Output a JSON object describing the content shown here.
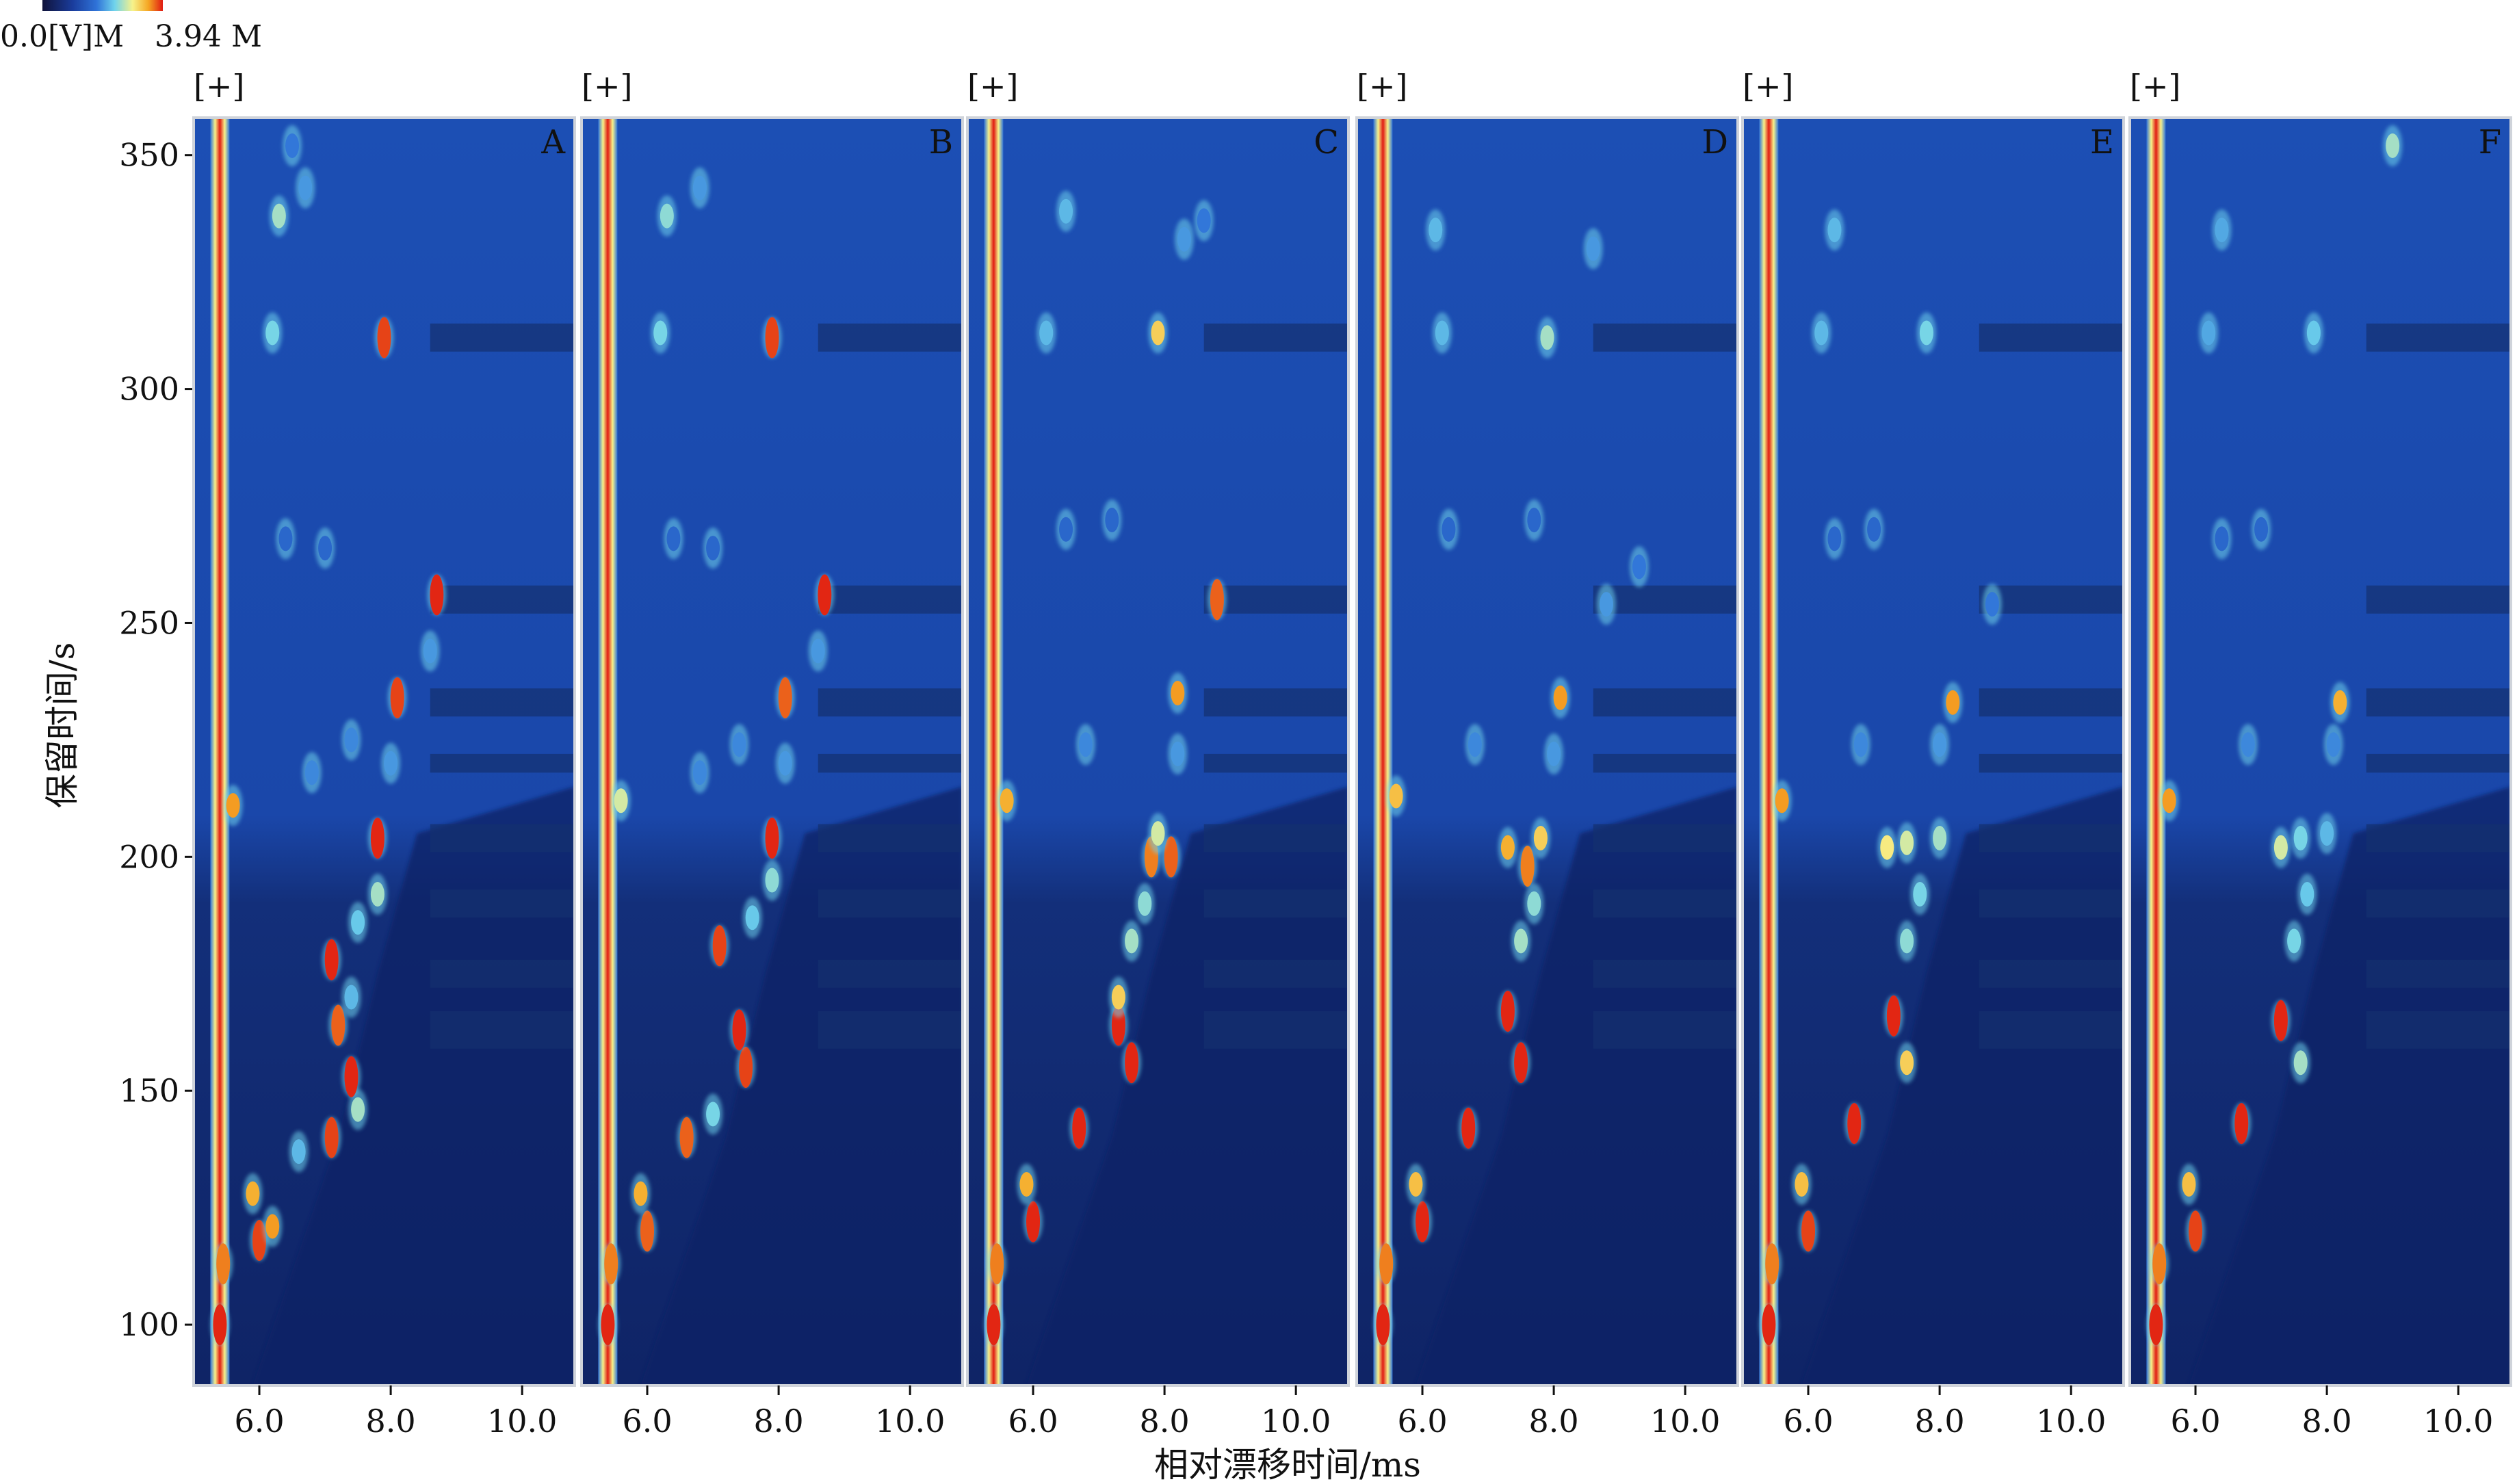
{
  "colorbar": {
    "min_label": "0.0[V]M",
    "max_label": "3.94 M",
    "colors": [
      "#10133a",
      "#1a3c9c",
      "#2f73d8",
      "#6fd3ec",
      "#f7f28a",
      "#f5a623",
      "#e01a12"
    ]
  },
  "ylabel": "保留时间/s",
  "xlabel": "相对漂移时间/ms",
  "panel_header": "[+]",
  "chart_data": {
    "type": "heatmap",
    "title": "",
    "x_axis": {
      "label": "相对漂移时间/ms",
      "range": [
        5.0,
        10.8
      ],
      "ticks": [
        6.0,
        8.0,
        10.0
      ],
      "tick_labels": [
        "6.0",
        "8.0",
        "10.0"
      ]
    },
    "y_axis": {
      "label": "保留时间/s",
      "range": [
        87,
        358
      ],
      "ticks": [
        100,
        150,
        200,
        250,
        300,
        350
      ],
      "tick_labels": [
        "100",
        "150",
        "200",
        "250",
        "300",
        "350"
      ]
    },
    "value_range": {
      "min_label": "0.0[V]M",
      "max_label": "3.94 M"
    },
    "reactant_ion_peak_ms": 5.4,
    "panels": [
      {
        "label": "A",
        "spots": [
          [
            5.4,
            100,
            3.9
          ],
          [
            5.45,
            113,
            3.6
          ],
          [
            6.0,
            118,
            3.8
          ],
          [
            5.9,
            128,
            3.4
          ],
          [
            6.2,
            121,
            3.5
          ],
          [
            6.6,
            137,
            2.2
          ],
          [
            7.1,
            140,
            3.8
          ],
          [
            7.5,
            146,
            2.6
          ],
          [
            7.4,
            153,
            3.9
          ],
          [
            7.2,
            164,
            3.7
          ],
          [
            7.4,
            170,
            2.2
          ],
          [
            7.1,
            178,
            3.9
          ],
          [
            7.5,
            186,
            2.3
          ],
          [
            7.8,
            192,
            2.6
          ],
          [
            7.8,
            204,
            3.9
          ],
          [
            8.0,
            220,
            2.0
          ],
          [
            8.1,
            234,
            3.8
          ],
          [
            8.6,
            244,
            2.0
          ],
          [
            8.7,
            256,
            3.9
          ],
          [
            7.9,
            311,
            3.8
          ],
          [
            6.2,
            312,
            2.4
          ],
          [
            6.3,
            337,
            2.6
          ],
          [
            6.7,
            343,
            2.0
          ],
          [
            6.5,
            352,
            1.8
          ],
          [
            5.6,
            211,
            3.5
          ],
          [
            6.8,
            218,
            1.9
          ],
          [
            7.4,
            225,
            1.9
          ],
          [
            6.4,
            268,
            1.6
          ],
          [
            7.0,
            266,
            1.6
          ]
        ]
      },
      {
        "label": "B",
        "spots": [
          [
            5.4,
            100,
            3.9
          ],
          [
            5.45,
            113,
            3.6
          ],
          [
            6.0,
            120,
            3.7
          ],
          [
            5.9,
            128,
            3.4
          ],
          [
            6.6,
            140,
            3.7
          ],
          [
            7.0,
            145,
            2.4
          ],
          [
            7.5,
            155,
            3.8
          ],
          [
            7.4,
            163,
            3.9
          ],
          [
            7.1,
            181,
            3.8
          ],
          [
            7.6,
            187,
            2.3
          ],
          [
            7.9,
            195,
            2.5
          ],
          [
            7.9,
            204,
            3.9
          ],
          [
            8.1,
            220,
            2.0
          ],
          [
            8.1,
            234,
            3.7
          ],
          [
            8.6,
            244,
            2.0
          ],
          [
            8.7,
            256,
            3.9
          ],
          [
            7.9,
            311,
            3.8
          ],
          [
            6.2,
            312,
            2.4
          ],
          [
            6.3,
            337,
            2.5
          ],
          [
            6.8,
            343,
            2.0
          ],
          [
            5.6,
            212,
            2.8
          ],
          [
            6.8,
            218,
            1.9
          ],
          [
            7.4,
            224,
            1.9
          ],
          [
            6.4,
            268,
            1.6
          ],
          [
            7.0,
            266,
            1.6
          ]
        ]
      },
      {
        "label": "C",
        "spots": [
          [
            5.4,
            100,
            3.9
          ],
          [
            5.45,
            113,
            3.6
          ],
          [
            6.0,
            122,
            3.9
          ],
          [
            5.9,
            130,
            3.4
          ],
          [
            6.7,
            142,
            3.9
          ],
          [
            7.5,
            156,
            3.9
          ],
          [
            7.3,
            164,
            3.9
          ],
          [
            7.3,
            170,
            3.2
          ],
          [
            7.5,
            182,
            2.6
          ],
          [
            7.7,
            190,
            2.5
          ],
          [
            7.8,
            200,
            3.6
          ],
          [
            8.1,
            200,
            3.7
          ],
          [
            7.9,
            205,
            2.8
          ],
          [
            8.2,
            222,
            2.0
          ],
          [
            8.2,
            235,
            3.5
          ],
          [
            8.8,
            255,
            3.7
          ],
          [
            7.9,
            312,
            3.2
          ],
          [
            6.2,
            312,
            2.2
          ],
          [
            6.5,
            338,
            2.2
          ],
          [
            8.3,
            332,
            2.0
          ],
          [
            8.6,
            336,
            1.8
          ],
          [
            5.6,
            212,
            3.4
          ],
          [
            6.8,
            224,
            1.9
          ],
          [
            6.5,
            270,
            1.6
          ],
          [
            7.2,
            272,
            1.6
          ]
        ]
      },
      {
        "label": "D",
        "spots": [
          [
            5.4,
            100,
            3.9
          ],
          [
            5.45,
            113,
            3.6
          ],
          [
            6.0,
            122,
            3.9
          ],
          [
            5.9,
            130,
            3.3
          ],
          [
            6.7,
            142,
            3.9
          ],
          [
            7.5,
            156,
            3.9
          ],
          [
            7.3,
            167,
            3.9
          ],
          [
            7.5,
            182,
            2.6
          ],
          [
            7.7,
            190,
            2.5
          ],
          [
            7.6,
            198,
            3.6
          ],
          [
            7.3,
            202,
            3.4
          ],
          [
            7.8,
            204,
            3.2
          ],
          [
            8.0,
            222,
            2.0
          ],
          [
            8.1,
            234,
            3.5
          ],
          [
            8.8,
            254,
            2.0
          ],
          [
            9.3,
            262,
            1.8
          ],
          [
            7.9,
            311,
            2.6
          ],
          [
            6.3,
            312,
            2.2
          ],
          [
            6.2,
            334,
            2.2
          ],
          [
            8.6,
            330,
            2.0
          ],
          [
            5.6,
            213,
            3.3
          ],
          [
            6.8,
            224,
            1.9
          ],
          [
            6.4,
            270,
            1.6
          ],
          [
            7.7,
            272,
            1.6
          ]
        ]
      },
      {
        "label": "E",
        "spots": [
          [
            5.4,
            100,
            3.9
          ],
          [
            5.45,
            113,
            3.6
          ],
          [
            6.0,
            120,
            3.8
          ],
          [
            5.9,
            130,
            3.3
          ],
          [
            6.7,
            143,
            3.9
          ],
          [
            7.5,
            156,
            3.2
          ],
          [
            7.3,
            166,
            3.9
          ],
          [
            7.5,
            182,
            2.5
          ],
          [
            7.7,
            192,
            2.4
          ],
          [
            7.2,
            202,
            3.0
          ],
          [
            7.5,
            203,
            2.8
          ],
          [
            8.0,
            204,
            2.6
          ],
          [
            8.0,
            224,
            2.0
          ],
          [
            8.2,
            233,
            3.5
          ],
          [
            8.8,
            254,
            1.8
          ],
          [
            7.8,
            312,
            2.4
          ],
          [
            6.2,
            312,
            2.2
          ],
          [
            6.4,
            334,
            2.2
          ],
          [
            5.6,
            212,
            3.5
          ],
          [
            6.8,
            224,
            1.9
          ],
          [
            6.4,
            268,
            1.6
          ],
          [
            7.0,
            270,
            1.6
          ]
        ]
      },
      {
        "label": "F",
        "spots": [
          [
            5.4,
            100,
            3.9
          ],
          [
            5.45,
            113,
            3.6
          ],
          [
            6.0,
            120,
            3.8
          ],
          [
            5.9,
            130,
            3.3
          ],
          [
            6.7,
            143,
            3.9
          ],
          [
            7.6,
            156,
            2.6
          ],
          [
            7.3,
            165,
            3.9
          ],
          [
            7.5,
            182,
            2.4
          ],
          [
            7.7,
            192,
            2.3
          ],
          [
            7.3,
            202,
            2.8
          ],
          [
            7.6,
            204,
            2.4
          ],
          [
            8.0,
            205,
            2.2
          ],
          [
            8.1,
            224,
            1.9
          ],
          [
            8.2,
            233,
            3.4
          ],
          [
            7.8,
            312,
            2.3
          ],
          [
            6.2,
            312,
            2.1
          ],
          [
            6.4,
            334,
            2.1
          ],
          [
            9.0,
            352,
            2.6
          ],
          [
            5.6,
            212,
            3.5
          ],
          [
            6.8,
            224,
            1.9
          ],
          [
            6.4,
            268,
            1.6
          ],
          [
            7.0,
            270,
            1.6
          ]
        ]
      }
    ]
  }
}
